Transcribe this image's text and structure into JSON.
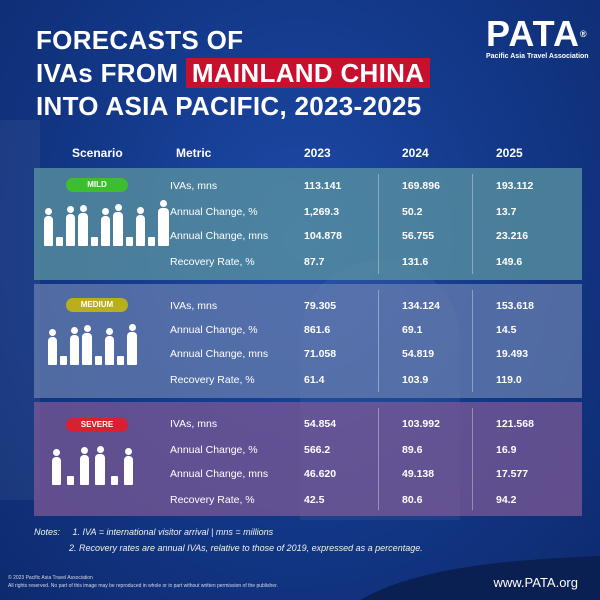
{
  "title": {
    "line1": "FORECASTS OF",
    "line2_pre": "IVAs FROM",
    "line2_highlight": "MAINLAND CHINA",
    "line3": "INTO ASIA PACIFIC, 2023-2025"
  },
  "logo": {
    "word": "PATA",
    "mark": "®",
    "tagline": "Pacific Asia Travel Association"
  },
  "headers": {
    "scenario": "Scenario",
    "metric": "Metric",
    "y1": "2023",
    "y2": "2024",
    "y3": "2025"
  },
  "colors": {
    "mild": "#3bbf2f",
    "medium": "#b9ae1e",
    "severe": "#d8202f",
    "highlight": "#c8102e"
  },
  "scenarios": [
    {
      "name": "MILD",
      "icon": "travelers-group-icon",
      "rows": [
        {
          "metric": "IVAs, mns",
          "v": [
            "113.141",
            "169.896",
            "193.112"
          ]
        },
        {
          "metric": "Annual Change, %",
          "v": [
            "1,269.3",
            "50.2",
            "13.7"
          ]
        },
        {
          "metric": "Annual Change, mns",
          "v": [
            "104.878",
            "56.755",
            "23.216"
          ]
        },
        {
          "metric": "Recovery Rate, %",
          "v": [
            "87.7",
            "131.6",
            "149.6"
          ]
        }
      ]
    },
    {
      "name": "MEDIUM",
      "icon": "travelers-group-icon",
      "rows": [
        {
          "metric": "IVAs, mns",
          "v": [
            "79.305",
            "134.124",
            "153.618"
          ]
        },
        {
          "metric": "Annual Change, %",
          "v": [
            "861.6",
            "69.1",
            "14.5"
          ]
        },
        {
          "metric": "Annual Change, mns",
          "v": [
            "71.058",
            "54.819",
            "19.493"
          ]
        },
        {
          "metric": "Recovery Rate, %",
          "v": [
            "61.4",
            "103.9",
            "119.0"
          ]
        }
      ]
    },
    {
      "name": "SEVERE",
      "icon": "travelers-group-icon",
      "rows": [
        {
          "metric": "IVAs, mns",
          "v": [
            "54.854",
            "103.992",
            "121.568"
          ]
        },
        {
          "metric": "Annual Change, %",
          "v": [
            "566.2",
            "89.6",
            "16.9"
          ]
        },
        {
          "metric": "Annual Change, mns",
          "v": [
            "46.620",
            "49.138",
            "17.577"
          ]
        },
        {
          "metric": "Recovery Rate, %",
          "v": [
            "42.5",
            "80.6",
            "94.2"
          ]
        }
      ]
    }
  ],
  "notes": {
    "label": "Notes:",
    "n1": "1. IVA = international visitor arrival | mns = millions",
    "n2": "2. Recovery rates are annual IVAs, relative to those of 2019, expressed as a percentage."
  },
  "copyright": {
    "line1": "© 2023 Pacific Asia Travel Association",
    "line2": "All rights reserved. No part of this image may be reproduced in whole or in part without written permission of the publisher."
  },
  "url": "www.PATA.org"
}
